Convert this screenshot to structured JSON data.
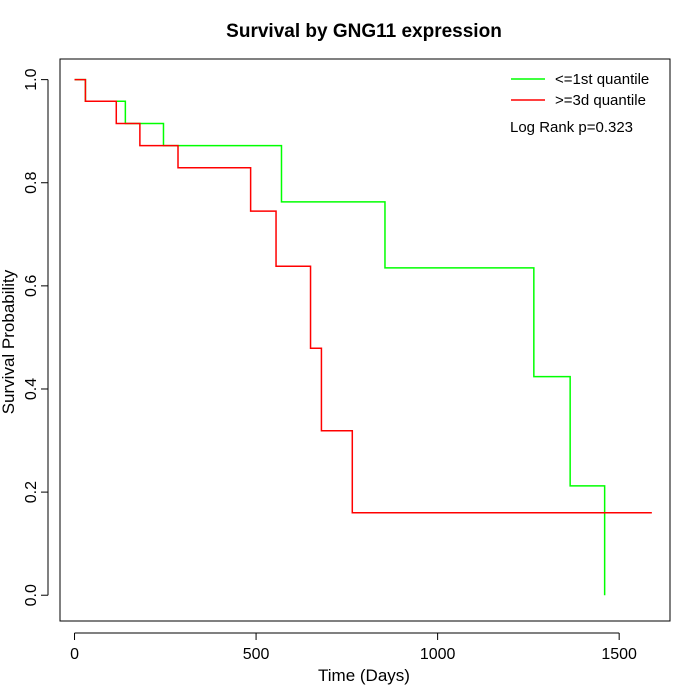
{
  "chart_data": {
    "type": "line",
    "title": "Survival by GNG11 expression",
    "xlabel": "Time (Days)",
    "ylabel": "Survival Probability",
    "xlim": [
      -40,
      1640
    ],
    "ylim": [
      -0.05,
      1.04
    ],
    "x_ticks": [
      0,
      500,
      1000,
      1500
    ],
    "y_ticks": [
      0.0,
      0.2,
      0.4,
      0.6,
      0.8,
      1.0
    ],
    "x_tick_labels": [
      "0",
      "500",
      "1000",
      "1500"
    ],
    "y_tick_labels": [
      "0.0",
      "0.2",
      "0.4",
      "0.6",
      "0.8",
      "1.0"
    ],
    "grid": false,
    "legend_position": "top-right",
    "series": [
      {
        "name": "<=1st quantile",
        "color": "#00ff00",
        "step": true,
        "x": [
          0,
          30,
          140,
          245,
          570,
          855,
          1265,
          1365,
          1460,
          1460
        ],
        "y": [
          1.0,
          0.958,
          0.915,
          0.872,
          0.763,
          0.635,
          0.424,
          0.212,
          0.212,
          0.0
        ]
      },
      {
        "name": ">=3d quantile",
        "color": "#ff0000",
        "step": true,
        "x": [
          0,
          30,
          115,
          180,
          285,
          485,
          555,
          650,
          680,
          765,
          1590
        ],
        "y": [
          1.0,
          0.958,
          0.915,
          0.872,
          0.829,
          0.745,
          0.638,
          0.479,
          0.319,
          0.16,
          0.16
        ]
      }
    ],
    "annotations": [
      "Log Rank p=0.323"
    ]
  }
}
